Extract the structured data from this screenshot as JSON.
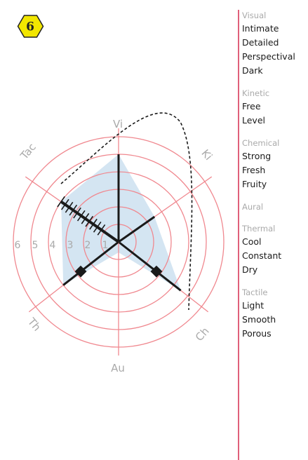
{
  "badge": {
    "number": "6",
    "fill": "#f2e600"
  },
  "radar": {
    "axes": [
      "Vi",
      "Ki",
      "Ch",
      "Au",
      "Th",
      "Tac"
    ],
    "ring_labels": [
      "6",
      "5",
      "4",
      "3",
      "2",
      "1"
    ],
    "max": 6,
    "values": {
      "Vi": 5,
      "Ki": 2.5,
      "Ch": 4.5,
      "Au": 0,
      "Th": 4,
      "Tac": 4
    },
    "markers": {
      "Ki": 2.5,
      "Th": 2.5,
      "Ch": 2.5
    },
    "colors": {
      "ring": "#f0888f",
      "fill": "#c5dced",
      "axis": "#1a1a1a"
    }
  },
  "legend": {
    "sections": [
      {
        "head": "Visual",
        "items": [
          "Intimate",
          "Detailed",
          "Perspectival",
          "Dark"
        ]
      },
      {
        "head": "Kinetic",
        "items": [
          "Free",
          "Level"
        ]
      },
      {
        "head": "Chemical",
        "items": [
          "Strong",
          "Fresh",
          "Fruity"
        ]
      },
      {
        "head": "Aural",
        "items": []
      },
      {
        "head": "Thermal",
        "items": [
          "Cool",
          "Constant",
          "Dry"
        ]
      },
      {
        "head": "Tactile",
        "items": [
          "Light",
          "Smooth",
          "Porous"
        ]
      }
    ]
  }
}
